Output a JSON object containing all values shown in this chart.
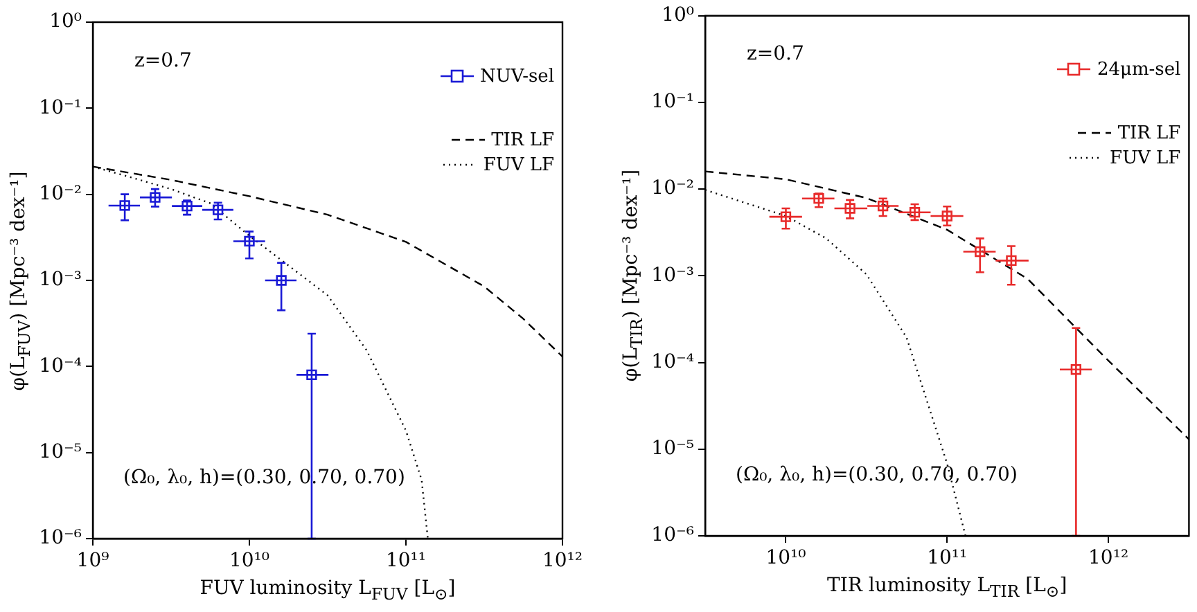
{
  "chart_data": [
    {
      "type": "scatter",
      "xlabel": "FUV luminosity L$_{FUV}$ [L$_{⊙}$]",
      "ylabel": "φ(L$_{FUV}$) [Mpc⁻³ dex⁻¹]",
      "log": "xy",
      "legend": "top right",
      "grid": false,
      "annotations": [
        "z=0.7",
        "(Ω₀, λ₀, h)=(0.30, 0.70, 0.70)"
      ],
      "xlim": [
        1000000000.0,
        1000000000000.0
      ],
      "xticks": [
        {
          "value": 1000000000.0,
          "label": "10⁹"
        },
        {
          "value": 10000000000.0,
          "label": "10¹⁰"
        },
        {
          "value": 100000000000.0,
          "label": "10¹¹"
        },
        {
          "value": 1000000000000.0,
          "label": "10¹²"
        }
      ],
      "ylim": [
        1e-06,
        1
      ],
      "yticks": [
        {
          "value": 1e-06,
          "label": "10⁻⁶"
        },
        {
          "value": 1e-05,
          "label": "10⁻⁵"
        },
        {
          "value": 0.0001,
          "label": "10⁻⁴"
        },
        {
          "value": 0.001,
          "label": "10⁻³"
        },
        {
          "value": 0.01,
          "label": "10⁻²"
        },
        {
          "value": 0.1,
          "label": "10⁻¹"
        },
        {
          "value": 1,
          "label": "10⁰"
        }
      ],
      "series": [
        {
          "name": "NUV-sel",
          "type": "scatter",
          "marker": "square",
          "color": "#1a1ad6",
          "x": [
            1600000000.0,
            2500000000.0,
            4000000000.0,
            6300000000.0,
            10000000000.0,
            16000000000.0,
            25000000000.0
          ],
          "values": [
            0.0074,
            0.0092,
            0.0073,
            0.0066,
            0.00285,
            0.001,
            8e-05
          ],
          "errors": [
            [
              0.005,
              0.01
            ],
            [
              0.0072,
              0.0115
            ],
            [
              0.0058,
              0.0085
            ],
            [
              0.0051,
              0.008
            ],
            [
              0.0018,
              0.0037
            ],
            [
              0.00045,
              0.0016
            ],
            [
              1e-06,
              0.00024
            ]
          ],
          "xerrors": [
            [
              1260000000.0,
              2000000000.0
            ],
            [
              2000000000.0,
              3200000000.0
            ],
            [
              3200000000.0,
              5000000000.0
            ],
            [
              5000000000.0,
              7900000000.0
            ],
            [
              7900000000.0,
              12600000000.0
            ],
            [
              12600000000.0,
              20000000000.0
            ],
            [
              20000000000.0,
              32000000000.0
            ]
          ]
        },
        {
          "name": "TIR LF",
          "type": "line",
          "line_style": "dashed",
          "color": "#000000",
          "x": [
            1000000000.0,
            3160000000.0,
            10000000000.0,
            31600000000.0,
            100000000000.0,
            316000000000.0,
            560000000000.0,
            1000000000000.0
          ],
          "values": [
            0.021,
            0.0147,
            0.0095,
            0.0058,
            0.0028,
            0.00085,
            0.00036,
            0.00013
          ]
        },
        {
          "name": "FUV LF",
          "type": "line",
          "line_style": "dotted",
          "color": "#000000",
          "x": [
            1000000000.0,
            1780000000.0,
            3160000000.0,
            5600000000.0,
            10000000000.0,
            31600000000.0,
            56000000000.0,
            100000000000.0,
            126000000000.0,
            138000000000.0
          ],
          "values": [
            0.021,
            0.0156,
            0.0115,
            0.0079,
            0.0033,
            0.00067,
            0.000155,
            1.8e-05,
            4.8e-06,
            1e-06
          ]
        }
      ]
    },
    {
      "type": "scatter",
      "xlabel": "TIR luminosity L$_{TIR}$ [L$_{⊙}$]",
      "ylabel": "φ(L$_{TIR}$) [Mpc⁻³ dex⁻¹]",
      "log": "xy",
      "legend": "top right",
      "grid": false,
      "annotations": [
        "z=0.7",
        "(Ω₀, λ₀, h)=(0.30, 0.70, 0.70)"
      ],
      "xlim": [
        3160000000.0,
        3160000000000.0
      ],
      "xticks": [
        {
          "value": 10000000000.0,
          "label": "10¹⁰"
        },
        {
          "value": 100000000000.0,
          "label": "10¹¹"
        },
        {
          "value": 1000000000000.0,
          "label": "10¹²"
        }
      ],
      "ylim": [
        1e-06,
        1
      ],
      "yticks": [
        {
          "value": 1e-06,
          "label": "10⁻⁶"
        },
        {
          "value": 1e-05,
          "label": "10⁻⁵"
        },
        {
          "value": 0.0001,
          "label": "10⁻⁴"
        },
        {
          "value": 0.001,
          "label": "10⁻³"
        },
        {
          "value": 0.01,
          "label": "10⁻²"
        },
        {
          "value": 0.1,
          "label": "10⁻¹"
        },
        {
          "value": 1,
          "label": "10⁰"
        }
      ],
      "series": [
        {
          "name": "24μm-sel",
          "type": "scatter",
          "marker": "square",
          "color": "#e82a2a",
          "x": [
            10000000000.0,
            16000000000.0,
            25000000000.0,
            40000000000.0,
            63000000000.0,
            100000000000.0,
            160000000000.0,
            250000000000.0,
            630000000000.0
          ],
          "values": [
            0.0048,
            0.0078,
            0.006,
            0.0064,
            0.0054,
            0.0049,
            0.0019,
            0.0015,
            8.3e-05
          ],
          "errors": [
            [
              0.0035,
              0.006
            ],
            [
              0.0062,
              0.0089
            ],
            [
              0.0046,
              0.0075
            ],
            [
              0.0049,
              0.0078
            ],
            [
              0.0044,
              0.0067
            ],
            [
              0.0038,
              0.0063
            ],
            [
              0.0011,
              0.0027
            ],
            [
              0.00079,
              0.0022
            ],
            [
              1e-06,
              0.00025
            ]
          ],
          "xerrors": [
            [
              7900000000.0,
              12600000000.0
            ],
            [
              12600000000.0,
              20000000000.0
            ],
            [
              20000000000.0,
              32000000000.0
            ],
            [
              32000000000.0,
              50000000000.0
            ],
            [
              50000000000.0,
              79000000000.0
            ],
            [
              79000000000.0,
              126000000000.0
            ],
            [
              126000000000.0,
              200000000000.0
            ],
            [
              200000000000.0,
              320000000000.0
            ],
            [
              500000000000.0,
              790000000000.0
            ]
          ]
        },
        {
          "name": "TIR LF",
          "type": "line",
          "line_style": "dashed",
          "color": "#000000",
          "x": [
            3160000000.0,
            10000000000.0,
            31600000000.0,
            100000000000.0,
            316000000000.0,
            630000000000.0,
            1000000000000.0,
            1780000000000.0,
            3160000000000.0
          ],
          "values": [
            0.016,
            0.013,
            0.0079,
            0.0034,
            0.00092,
            0.00025,
            0.000105,
            3.7e-05,
            1.3e-05
          ]
        },
        {
          "name": "FUV LF",
          "type": "line",
          "line_style": "dotted",
          "color": "#000000",
          "x": [
            3160000000.0,
            10000000000.0,
            17800000000.0,
            31600000000.0,
            56000000000.0,
            100000000000.0,
            130000000000.0
          ],
          "values": [
            0.0098,
            0.0049,
            0.0027,
            0.00104,
            0.000195,
            6.8e-06,
            1e-06
          ]
        }
      ]
    }
  ]
}
